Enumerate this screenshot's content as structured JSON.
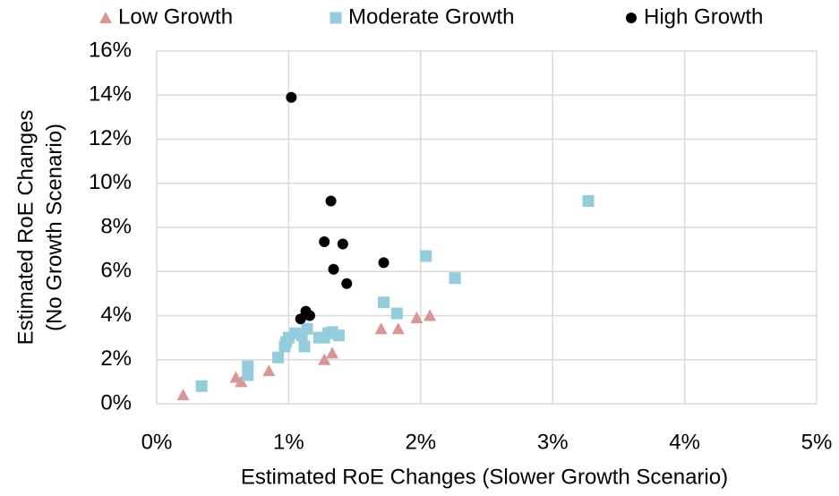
{
  "chart_data": {
    "type": "scatter",
    "xlabel": "Estimated RoE Changes (Slower Growth Scenario)",
    "ylabel": [
      "Estimated RoE Changes",
      "(No Growth Scenario)"
    ],
    "xlim": [
      0,
      5
    ],
    "xticks": [
      {
        "value": 0,
        "label": "0%"
      },
      {
        "value": 1,
        "label": "1%"
      },
      {
        "value": 2,
        "label": "2%"
      },
      {
        "value": 3,
        "label": "3%"
      },
      {
        "value": 4,
        "label": "4%"
      },
      {
        "value": 5,
        "label": "5%"
      }
    ],
    "ylim": [
      0,
      16
    ],
    "yticks": [
      {
        "value": 0,
        "label": "0%"
      },
      {
        "value": 2,
        "label": "2%"
      },
      {
        "value": 4,
        "label": "4%"
      },
      {
        "value": 6,
        "label": "6%"
      },
      {
        "value": 8,
        "label": "8%"
      },
      {
        "value": 10,
        "label": "10%"
      },
      {
        "value": 12,
        "label": "12%"
      },
      {
        "value": 14,
        "label": "14%"
      },
      {
        "value": 16,
        "label": "16%"
      }
    ],
    "grid": true,
    "legend": "top",
    "series": [
      {
        "name": "Low Growth",
        "color": "#d99694",
        "marker": "triangle",
        "x": [
          0.2,
          0.6,
          0.64,
          0.85,
          1.27,
          1.33,
          1.7,
          1.83,
          1.97,
          2.07
        ],
        "values": [
          0.4,
          1.2,
          1.0,
          1.5,
          2.0,
          2.3,
          3.4,
          3.4,
          3.9,
          4.0
        ]
      },
      {
        "name": "Moderate Growth",
        "color": "#93cddd",
        "marker": "square",
        "x": [
          0.34,
          0.69,
          0.69,
          0.92,
          0.97,
          0.98,
          1.0,
          1.05,
          1.1,
          1.12,
          1.14,
          1.23,
          1.27,
          1.3,
          1.33,
          1.38,
          1.72,
          1.82,
          2.04,
          2.26,
          3.27
        ],
        "values": [
          0.8,
          1.3,
          1.7,
          2.1,
          2.6,
          2.8,
          3.0,
          3.2,
          3.1,
          2.6,
          3.4,
          3.0,
          3.0,
          3.2,
          3.25,
          3.1,
          4.6,
          4.1,
          6.7,
          5.7,
          9.2
        ]
      },
      {
        "name": "High Growth",
        "color": "#000000",
        "marker": "circle",
        "x": [
          1.02,
          1.32,
          1.27,
          1.41,
          1.34,
          1.72,
          1.44,
          1.09,
          1.13,
          1.16
        ],
        "values": [
          13.9,
          9.2,
          7.35,
          7.25,
          6.1,
          6.4,
          5.45,
          3.85,
          4.2,
          4.0
        ]
      }
    ]
  }
}
